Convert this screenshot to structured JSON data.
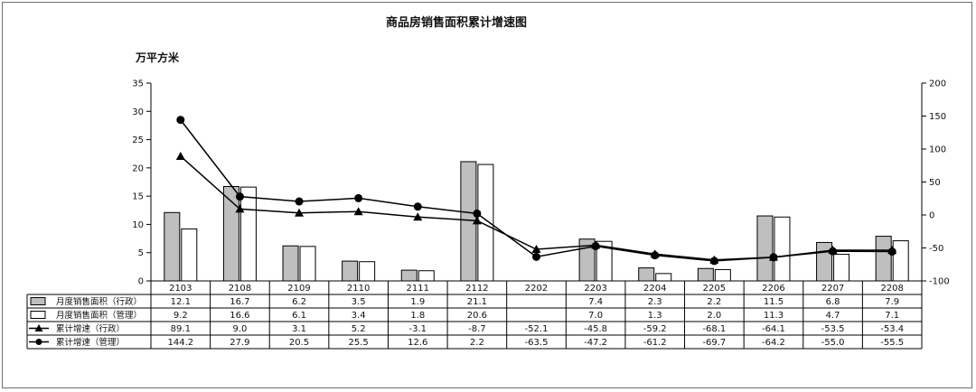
{
  "chart_data": {
    "type": "bar",
    "title": "商品房销售面积累计增速图",
    "ylabel": "万平方米",
    "ylim": [
      0,
      35
    ],
    "y2lim": [
      -100,
      200
    ],
    "yticks": [
      0,
      5,
      10,
      15,
      20,
      25,
      30,
      35
    ],
    "y2ticks": [
      -100,
      -50,
      0,
      50,
      100,
      150,
      200
    ],
    "categories": [
      "2103",
      "2108",
      "2109",
      "2110",
      "2111",
      "2112",
      "2202",
      "2203",
      "2204",
      "2205",
      "2206",
      "2207",
      "2208"
    ],
    "series": [
      {
        "name": "月度销售面积（行政）",
        "kind": "bar",
        "axis": "left",
        "color": "#bfbfbf",
        "values": [
          12.1,
          16.7,
          6.2,
          3.5,
          1.9,
          21.1,
          null,
          7.4,
          2.3,
          2.2,
          11.5,
          6.8,
          7.9
        ]
      },
      {
        "name": "月度销售面积（管理）",
        "kind": "bar",
        "axis": "left",
        "color": "#ffffff",
        "values": [
          9.2,
          16.6,
          6.1,
          3.4,
          1.8,
          20.6,
          null,
          7.0,
          1.3,
          2.0,
          11.3,
          4.7,
          7.1
        ]
      },
      {
        "name": "累计增速（行政）",
        "kind": "line",
        "axis": "right",
        "marker": "triangle",
        "color": "#000000",
        "values": [
          89.1,
          9.0,
          3.1,
          5.2,
          -3.1,
          -8.7,
          -52.1,
          -45.8,
          -59.2,
          -68.1,
          -64.1,
          -53.5,
          -53.4
        ]
      },
      {
        "name": "累计增速（管理）",
        "kind": "line",
        "axis": "right",
        "marker": "circle",
        "color": "#000000",
        "values": [
          144.2,
          27.9,
          20.5,
          25.5,
          12.6,
          2.2,
          -63.5,
          -47.2,
          -61.2,
          -69.7,
          -64.2,
          -55.0,
          -55.5
        ]
      }
    ],
    "grid": false,
    "legend": "table-below"
  }
}
